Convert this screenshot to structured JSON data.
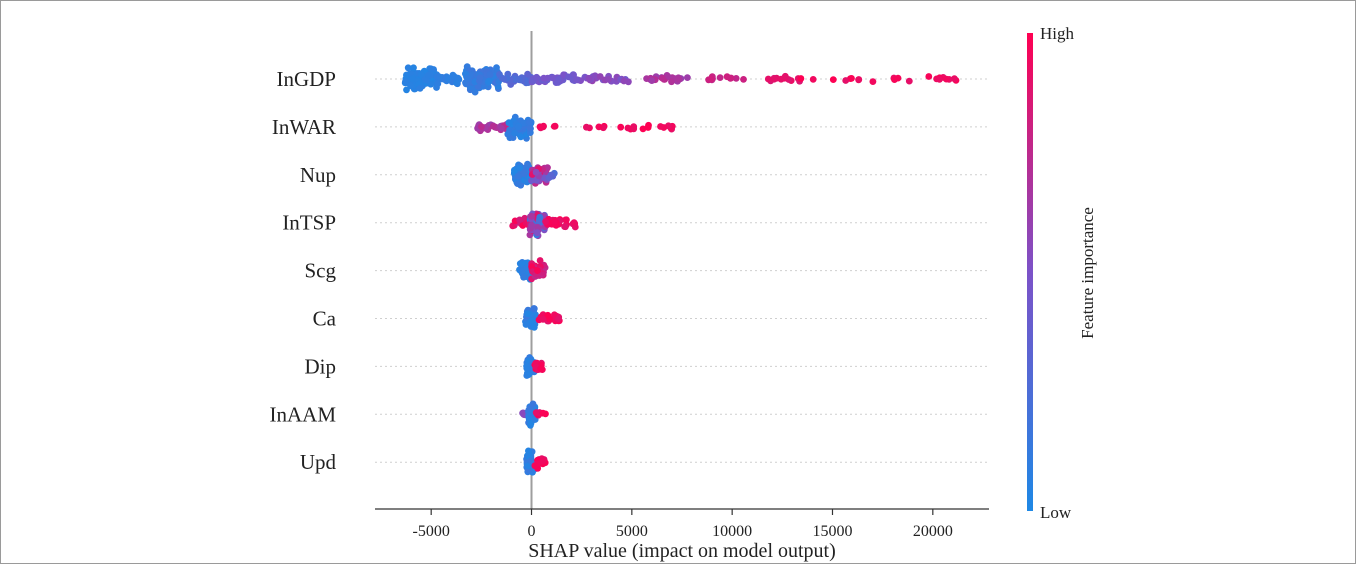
{
  "chart_data": {
    "type": "scatter",
    "subtype": "shap-beeswarm",
    "xlabel": "SHAP value (impact on model output)",
    "xlim": [
      -7800,
      22800
    ],
    "xticks": [
      -5000,
      0,
      5000,
      10000,
      15000,
      20000
    ],
    "xtick_labels": [
      "-5000",
      "0",
      "5000",
      "10000",
      "15000",
      "20000"
    ],
    "zero_line": 0,
    "grid": "horizontal dotted per feature",
    "colorbar": {
      "title": "Feature importance",
      "high_label": "High",
      "low_label": "Low",
      "low_color": "#1e88e5",
      "mid_color": "#7c52c8",
      "high_color": "#ff0052"
    },
    "features": [
      {
        "name": "InGDP",
        "clusters": [
          {
            "from": -6300,
            "to": -4700,
            "n": 120,
            "spread": 1.0,
            "c0": 0.02,
            "c1": 0.08
          },
          {
            "from": -4700,
            "to": -3600,
            "n": 25,
            "spread": 0.5,
            "c0": 0.06,
            "c1": 0.12
          },
          {
            "from": -3300,
            "to": -1600,
            "n": 130,
            "spread": 1.0,
            "c0": 0.05,
            "c1": 0.2
          },
          {
            "from": -1600,
            "to": 0,
            "n": 30,
            "spread": 0.45,
            "c0": 0.2,
            "c1": 0.35
          },
          {
            "from": 0,
            "to": 2200,
            "n": 40,
            "spread": 0.4,
            "c0": 0.38,
            "c1": 0.5
          },
          {
            "from": 2200,
            "to": 5000,
            "n": 28,
            "spread": 0.35,
            "c0": 0.45,
            "c1": 0.6
          },
          {
            "from": 5000,
            "to": 7800,
            "n": 24,
            "spread": 0.3,
            "c0": 0.6,
            "c1": 0.75
          },
          {
            "from": 8800,
            "to": 10600,
            "n": 12,
            "spread": 0.25,
            "c0": 0.75,
            "c1": 0.82
          },
          {
            "from": 11800,
            "to": 13400,
            "n": 12,
            "spread": 0.25,
            "c0": 0.85,
            "c1": 0.92
          },
          {
            "from": 13400,
            "to": 21200,
            "n": 22,
            "spread": 0.2,
            "c0": 0.9,
            "c1": 1.0
          }
        ]
      },
      {
        "name": "InWAR",
        "clusters": [
          {
            "from": -2700,
            "to": -1200,
            "n": 28,
            "spread": 0.35,
            "c0": 0.6,
            "c1": 0.75
          },
          {
            "from": -1200,
            "to": 0,
            "n": 60,
            "spread": 1.0,
            "c0": 0.02,
            "c1": 0.15
          },
          {
            "from": 400,
            "to": 1500,
            "n": 6,
            "spread": 0.2,
            "c0": 0.9,
            "c1": 1.0
          },
          {
            "from": 2700,
            "to": 3700,
            "n": 5,
            "spread": 0.2,
            "c0": 0.9,
            "c1": 1.0
          },
          {
            "from": 4400,
            "to": 7100,
            "n": 14,
            "spread": 0.2,
            "c0": 0.9,
            "c1": 1.0
          }
        ]
      },
      {
        "name": "Nup",
        "clusters": [
          {
            "from": -900,
            "to": 0,
            "n": 70,
            "spread": 1.0,
            "c0": 0.02,
            "c1": 0.15
          },
          {
            "from": 0,
            "to": 800,
            "n": 50,
            "spread": 0.8,
            "c0": 0.4,
            "c1": 0.9
          },
          {
            "from": 800,
            "to": 1200,
            "n": 6,
            "spread": 0.3,
            "c0": 0.2,
            "c1": 0.4
          }
        ]
      },
      {
        "name": "InTSP",
        "clusters": [
          {
            "from": -1000,
            "to": -100,
            "n": 12,
            "spread": 0.4,
            "c0": 0.8,
            "c1": 1.0
          },
          {
            "from": -100,
            "to": 700,
            "n": 80,
            "spread": 1.0,
            "c0": 0.1,
            "c1": 0.9
          },
          {
            "from": 700,
            "to": 2200,
            "n": 25,
            "spread": 0.35,
            "c0": 0.88,
            "c1": 1.0
          }
        ]
      },
      {
        "name": "Scg",
        "clusters": [
          {
            "from": -600,
            "to": 0,
            "n": 40,
            "spread": 0.7,
            "c0": 0.02,
            "c1": 0.12
          },
          {
            "from": 0,
            "to": 700,
            "n": 45,
            "spread": 0.8,
            "c0": 0.75,
            "c1": 1.0
          }
        ]
      },
      {
        "name": "Ca",
        "clusters": [
          {
            "from": -300,
            "to": 200,
            "n": 55,
            "spread": 1.0,
            "c0": 0.02,
            "c1": 0.15
          },
          {
            "from": 200,
            "to": 1400,
            "n": 22,
            "spread": 0.4,
            "c0": 0.88,
            "c1": 1.0
          }
        ]
      },
      {
        "name": "Dip",
        "clusters": [
          {
            "from": -250,
            "to": 150,
            "n": 55,
            "spread": 1.0,
            "c0": 0.02,
            "c1": 0.15
          },
          {
            "from": 150,
            "to": 600,
            "n": 16,
            "spread": 0.45,
            "c0": 0.88,
            "c1": 1.0
          }
        ]
      },
      {
        "name": "InAAM",
        "clusters": [
          {
            "from": -450,
            "to": -150,
            "n": 8,
            "spread": 0.35,
            "c0": 0.45,
            "c1": 0.6
          },
          {
            "from": -150,
            "to": 200,
            "n": 55,
            "spread": 1.0,
            "c0": 0.02,
            "c1": 0.15
          },
          {
            "from": 200,
            "to": 700,
            "n": 10,
            "spread": 0.3,
            "c0": 0.88,
            "c1": 1.0
          }
        ]
      },
      {
        "name": "Upd",
        "clusters": [
          {
            "from": -250,
            "to": 150,
            "n": 60,
            "spread": 1.0,
            "c0": 0.02,
            "c1": 0.15
          },
          {
            "from": 150,
            "to": 700,
            "n": 16,
            "spread": 0.45,
            "c0": 0.88,
            "c1": 1.0
          }
        ]
      }
    ]
  }
}
